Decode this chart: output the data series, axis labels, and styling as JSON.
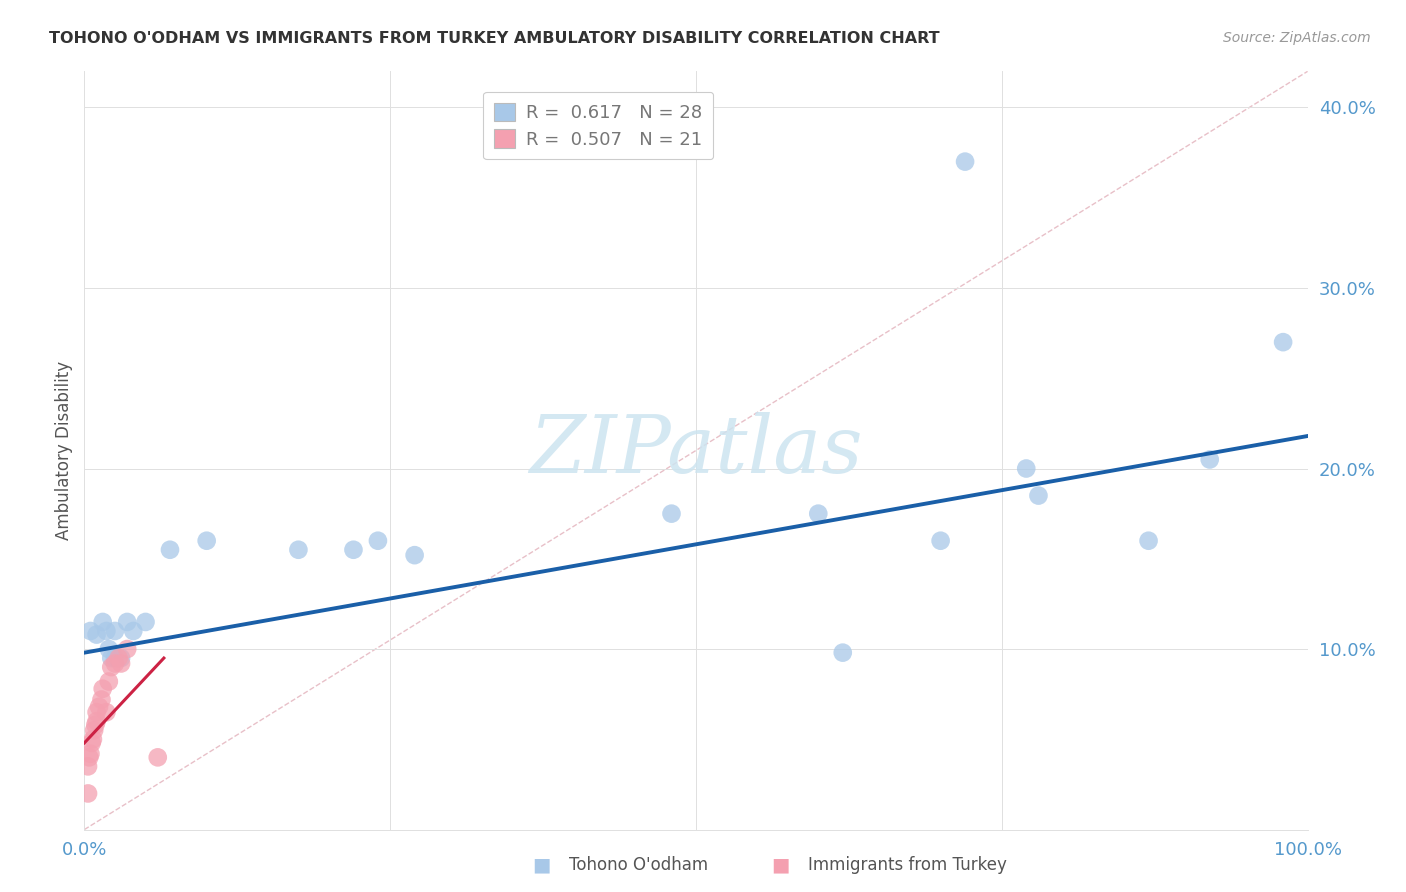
{
  "title": "TOHONO O'ODHAM VS IMMIGRANTS FROM TURKEY AMBULATORY DISABILITY CORRELATION CHART",
  "source": "Source: ZipAtlas.com",
  "ylabel": "Ambulatory Disability",
  "legend1_r": "0.617",
  "legend1_n": "28",
  "legend2_r": "0.507",
  "legend2_n": "21",
  "legend_label1": "Tohono O'odham",
  "legend_label2": "Immigrants from Turkey",
  "blue_color": "#a8c8e8",
  "pink_color": "#f4a0b0",
  "line_blue": "#1a5fa8",
  "line_pink": "#cc2244",
  "ref_line_color": "#cccccc",
  "watermark_color": "#cde4f0",
  "blue_x": [
    0.005,
    0.01,
    0.015,
    0.018,
    0.02,
    0.022,
    0.025,
    0.025,
    0.03,
    0.035,
    0.04,
    0.05,
    0.07,
    0.1,
    0.175,
    0.22,
    0.24,
    0.27,
    0.48,
    0.6,
    0.62,
    0.7,
    0.72,
    0.77,
    0.78,
    0.87,
    0.92,
    0.98
  ],
  "blue_y": [
    0.11,
    0.108,
    0.115,
    0.11,
    0.1,
    0.095,
    0.11,
    0.095,
    0.095,
    0.115,
    0.11,
    0.115,
    0.155,
    0.16,
    0.155,
    0.155,
    0.16,
    0.152,
    0.175,
    0.175,
    0.098,
    0.16,
    0.37,
    0.2,
    0.185,
    0.16,
    0.205,
    0.27
  ],
  "pink_x": [
    0.003,
    0.003,
    0.004,
    0.005,
    0.006,
    0.007,
    0.008,
    0.009,
    0.01,
    0.01,
    0.012,
    0.014,
    0.015,
    0.018,
    0.02,
    0.022,
    0.025,
    0.028,
    0.03,
    0.035,
    0.06
  ],
  "pink_y": [
    0.02,
    0.035,
    0.04,
    0.042,
    0.048,
    0.05,
    0.055,
    0.058,
    0.06,
    0.065,
    0.068,
    0.072,
    0.078,
    0.065,
    0.082,
    0.09,
    0.092,
    0.095,
    0.092,
    0.1,
    0.04
  ],
  "blue_line_x": [
    0.0,
    1.0
  ],
  "blue_line_y": [
    0.098,
    0.218
  ],
  "pink_line_x": [
    0.0,
    0.065
  ],
  "pink_line_y": [
    0.048,
    0.095
  ],
  "ref_line_x": [
    0.0,
    1.0
  ],
  "ref_line_y": [
    0.0,
    0.42
  ],
  "xlim": [
    0.0,
    1.0
  ],
  "ylim": [
    0.0,
    0.42
  ],
  "yticks": [
    0.0,
    0.1,
    0.2,
    0.3,
    0.4
  ],
  "ytick_labels": [
    "",
    "10.0%",
    "20.0%",
    "30.0%",
    "40.0%"
  ],
  "xtick_positions": [
    0.0,
    0.25,
    0.5,
    0.75,
    1.0
  ],
  "xtick_labels": [
    "0.0%",
    "",
    "",
    "",
    "100.0%"
  ],
  "background_color": "#ffffff",
  "grid_color": "#e0e0e0"
}
